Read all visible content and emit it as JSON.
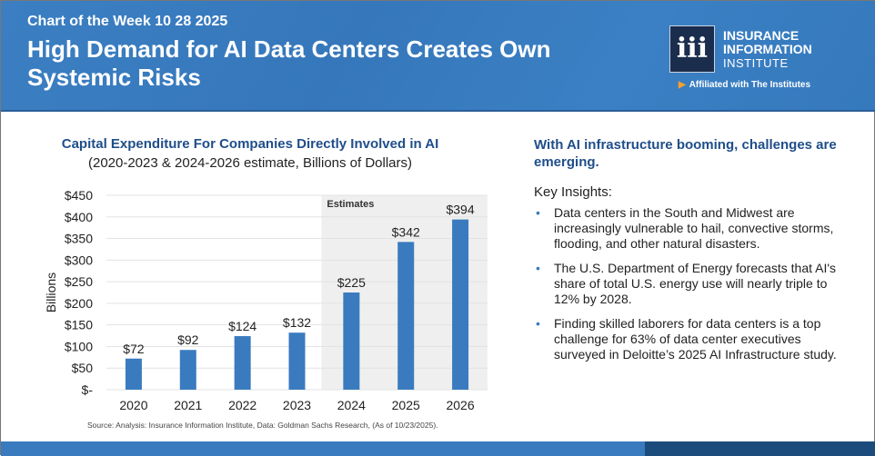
{
  "header": {
    "kicker": "Chart of the Week 10 28 2025",
    "title": "High Demand for AI Data Centers Creates Own Systemic Risks",
    "logo": {
      "mark": "iii",
      "line1": "INSURANCE",
      "line2": "INFORMATION",
      "line3": "INSTITUTE",
      "affiliation": "Affiliated with The Institutes"
    }
  },
  "chart_data": {
    "type": "bar",
    "title": "Capital Expenditure For Companies Directly Involved in AI",
    "subtitle": "(2020-2023 & 2024-2026 estimate, Billions of Dollars)",
    "categories": [
      "2020",
      "2021",
      "2022",
      "2023",
      "2024",
      "2025",
      "2026"
    ],
    "values": [
      72,
      92,
      124,
      132,
      225,
      342,
      394
    ],
    "data_labels": [
      "$72",
      "$92",
      "$124",
      "$132",
      "$225",
      "$342",
      "$394"
    ],
    "ylabel": "Billions",
    "xlabel": "",
    "ylim": [
      0,
      450
    ],
    "yticks": [
      "$-",
      "$50",
      "$100",
      "$150",
      "$200",
      "$250",
      "$300",
      "$350",
      "$400",
      "$450"
    ],
    "annotation": "Estimates",
    "estimate_start": "2024",
    "grid": true,
    "bar_color": "#3a7bbf",
    "source": "Source: Analysis: Insurance Information Institute, Data: Goldman Sachs Research, (As of 10/23/2025)."
  },
  "insights": {
    "heading": "With AI infrastructure booming, challenges are emerging.",
    "label": "Key Insights:",
    "items": [
      "Data centers in the South and Midwest are increasingly vulnerable to hail, convective storms, flooding, and other natural disasters.",
      "The U.S. Department of Energy forecasts that AI's share of total U.S. energy use will nearly triple to 12% by 2028.",
      "Finding skilled laborers for data centers is a top challenge for 63% of data center executives surveyed in Deloitte’s 2025 AI Infrastructure study."
    ],
    "bullet": "•"
  }
}
